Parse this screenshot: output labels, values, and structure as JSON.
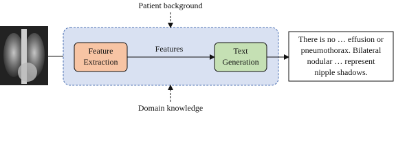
{
  "inputs": {
    "top": "Patient background",
    "bottom": "Domain knowledge"
  },
  "nodes": [
    {
      "label": [
        "Feature",
        "Extraction"
      ]
    },
    {
      "label": [
        "Text",
        "Generation"
      ]
    }
  ],
  "edge_label": "Features",
  "output": {
    "lines": [
      "There is no … effusion or",
      "pneumothorax. Bilateral",
      "nodular … represent",
      "nipple shadows."
    ]
  }
}
